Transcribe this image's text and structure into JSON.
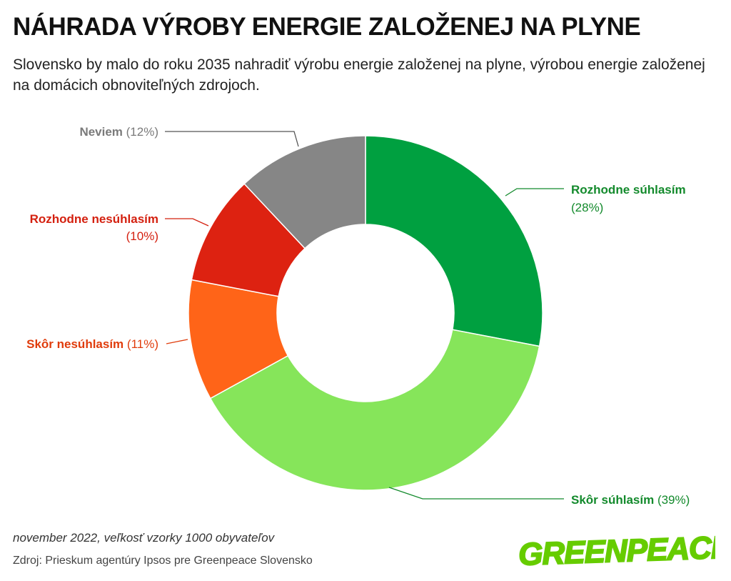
{
  "title": "NÁHRADA VÝROBY ENERGIE ZALOŽENEJ NA PLYNE",
  "subtitle": "Slovensko by malo do roku 2035 nahradiť výrobu energie založenej na plyne, výrobou energie založenej na domácich obnoviteľných zdrojoch.",
  "footer": {
    "date_note": "november 2022, veľkosť vzorky 1000 obyvateľov",
    "source": "Zdroj: Prieskum agentúry Ipsos pre Greenpeace Slovensko",
    "logo_text": "GREENPEACE"
  },
  "colors": {
    "logo": "#66cc00",
    "leader": "#555555"
  },
  "chart_data": {
    "type": "pie",
    "variant": "donut",
    "unit": "%",
    "slices": [
      {
        "label": "Rozhodne súhlasím",
        "value": 28,
        "value_text": "(28%)",
        "color": "#00a040",
        "label_color": "#138a2c"
      },
      {
        "label": "Skôr súhlasím",
        "value": 39,
        "value_text": "(39%)",
        "color": "#86e55a",
        "label_color": "#138a2c"
      },
      {
        "label": "Skôr nesúhlasím",
        "value": 11,
        "value_text": "(11%)",
        "color": "#ff6418",
        "label_color": "#e03c0c"
      },
      {
        "label": "Rozhodne nesúhlasím",
        "value": 10,
        "value_text": "(10%)",
        "color": "#dd2211",
        "label_color": "#d4200f"
      },
      {
        "label": "Neviem",
        "value": 12,
        "value_text": "(12%)",
        "color": "#868686",
        "label_color": "#7a7a7a"
      }
    ]
  }
}
